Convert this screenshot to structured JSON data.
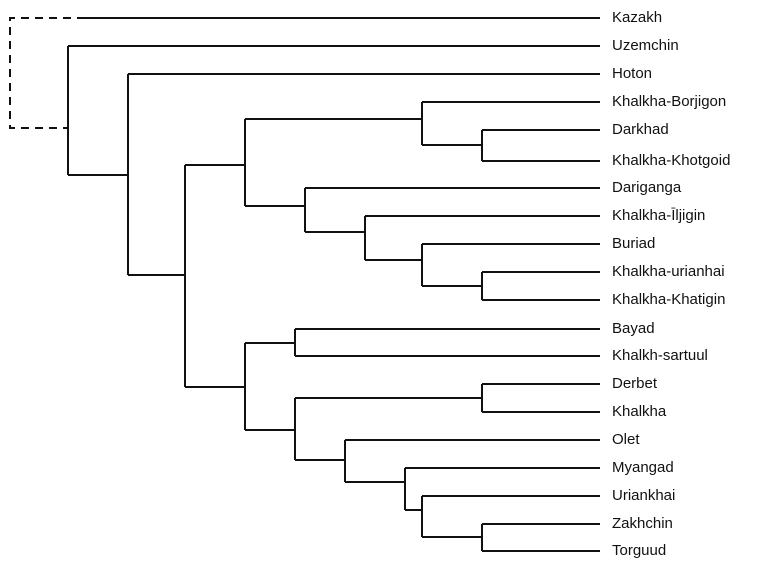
{
  "leaves": [
    "Kazakh",
    "Uzemchin",
    "Hoton",
    "Khalkha-Borjigon",
    "Darkhad",
    "Khalkha-Khotgoid",
    "Dariganga",
    "Khalkha-Īljigin",
    "Buriad",
    "Khalkha-urianhai",
    "Khalkha-Khatigin",
    "Bayad",
    "Khalkh-sartuul",
    "Derbet",
    "Khalkha",
    "Olet",
    "Myangad",
    "Uriankhai",
    "Zakhchin",
    "Torguud"
  ]
}
